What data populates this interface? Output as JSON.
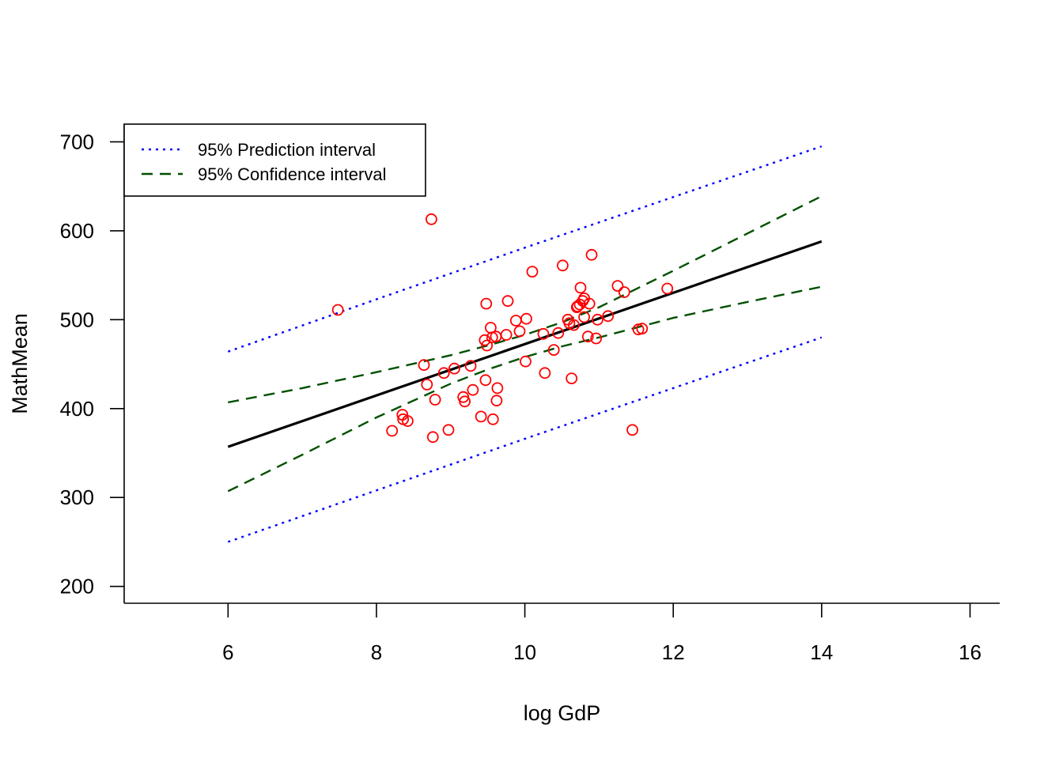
{
  "chart_data": {
    "type": "scatter",
    "xlabel": "log GdP",
    "ylabel": "MathMean",
    "xlim": [
      4.6,
      16.4
    ],
    "ylim": [
      181,
      720
    ],
    "xticks": [
      6,
      8,
      10,
      12,
      14,
      16
    ],
    "yticks": [
      200,
      300,
      400,
      500,
      600,
      700
    ],
    "xtick_labels": [
      "6",
      "8",
      "10",
      "12",
      "14",
      "16"
    ],
    "ytick_labels": [
      "200",
      "300",
      "400",
      "500",
      "600",
      "700"
    ],
    "grid": false,
    "legend": {
      "position": "top-left",
      "entries": [
        {
          "label": "95% Prediction interval",
          "color": "#0000ff",
          "dash": "dotted"
        },
        {
          "label": "95% Confidence interval",
          "color": "#005000",
          "dash": "dashed"
        }
      ]
    },
    "points_color": "#ff0000",
    "points": [
      [
        7.48,
        511
      ],
      [
        8.21,
        375
      ],
      [
        8.35,
        393
      ],
      [
        8.36,
        388
      ],
      [
        8.42,
        386
      ],
      [
        8.64,
        449
      ],
      [
        8.68,
        427
      ],
      [
        8.74,
        613
      ],
      [
        8.76,
        368
      ],
      [
        8.79,
        410
      ],
      [
        8.91,
        440
      ],
      [
        8.97,
        376
      ],
      [
        9.05,
        445
      ],
      [
        9.17,
        413
      ],
      [
        9.19,
        408
      ],
      [
        9.27,
        448
      ],
      [
        9.3,
        421
      ],
      [
        9.41,
        391
      ],
      [
        9.46,
        477
      ],
      [
        9.47,
        432
      ],
      [
        9.48,
        518
      ],
      [
        9.49,
        471
      ],
      [
        9.54,
        491
      ],
      [
        9.56,
        480
      ],
      [
        9.57,
        388
      ],
      [
        9.61,
        481
      ],
      [
        9.62,
        409
      ],
      [
        9.63,
        423
      ],
      [
        9.75,
        483
      ],
      [
        9.77,
        521
      ],
      [
        9.88,
        499
      ],
      [
        9.93,
        487
      ],
      [
        10.01,
        453
      ],
      [
        10.02,
        501
      ],
      [
        10.1,
        554
      ],
      [
        10.25,
        484
      ],
      [
        10.27,
        440
      ],
      [
        10.39,
        466
      ],
      [
        10.45,
        485
      ],
      [
        10.51,
        561
      ],
      [
        10.58,
        500
      ],
      [
        10.6,
        496
      ],
      [
        10.63,
        434
      ],
      [
        10.66,
        494
      ],
      [
        10.7,
        514
      ],
      [
        10.71,
        515
      ],
      [
        10.74,
        517
      ],
      [
        10.75,
        536
      ],
      [
        10.78,
        521
      ],
      [
        10.8,
        524
      ],
      [
        10.8,
        503
      ],
      [
        10.85,
        481
      ],
      [
        10.87,
        518
      ],
      [
        10.9,
        573
      ],
      [
        10.96,
        479
      ],
      [
        10.98,
        500
      ],
      [
        11.12,
        504
      ],
      [
        11.25,
        538
      ],
      [
        11.34,
        531
      ],
      [
        11.45,
        376
      ],
      [
        11.53,
        489
      ],
      [
        11.58,
        490
      ],
      [
        11.92,
        535
      ]
    ],
    "series": [
      {
        "x": [
          6,
          14
        ],
        "y": [
          357,
          588
        ],
        "color": "#000000",
        "dash": "solid"
      },
      {
        "name": "95% Prediction interval",
        "x": [
          6,
          8,
          10,
          12,
          14
        ],
        "y": [
          464,
          523,
          581,
          638,
          695
        ],
        "color": "#0000ff",
        "dash": "dotted"
      },
      {
        "name": "95% Prediction interval",
        "x": [
          6,
          8,
          10,
          12,
          14
        ],
        "y": [
          250,
          308,
          366,
          423,
          480
        ],
        "color": "#0000ff",
        "dash": "dotted"
      },
      {
        "name": "95% Confidence interval",
        "x": [
          6,
          7,
          8,
          9,
          9.5,
          10,
          10.5,
          11,
          12,
          13,
          14
        ],
        "y": [
          407,
          423,
          441,
          460,
          471,
          483,
          497,
          514,
          555,
          597,
          639
        ],
        "color": "#005000",
        "dash": "dashed"
      },
      {
        "name": "95% Confidence interval",
        "x": [
          6,
          7,
          8,
          9,
          9.5,
          10,
          10.5,
          11,
          12,
          13,
          14
        ],
        "y": [
          307,
          348,
          390,
          428,
          444,
          458,
          470,
          480,
          502,
          520,
          537
        ],
        "color": "#005000",
        "dash": "dashed"
      }
    ]
  }
}
